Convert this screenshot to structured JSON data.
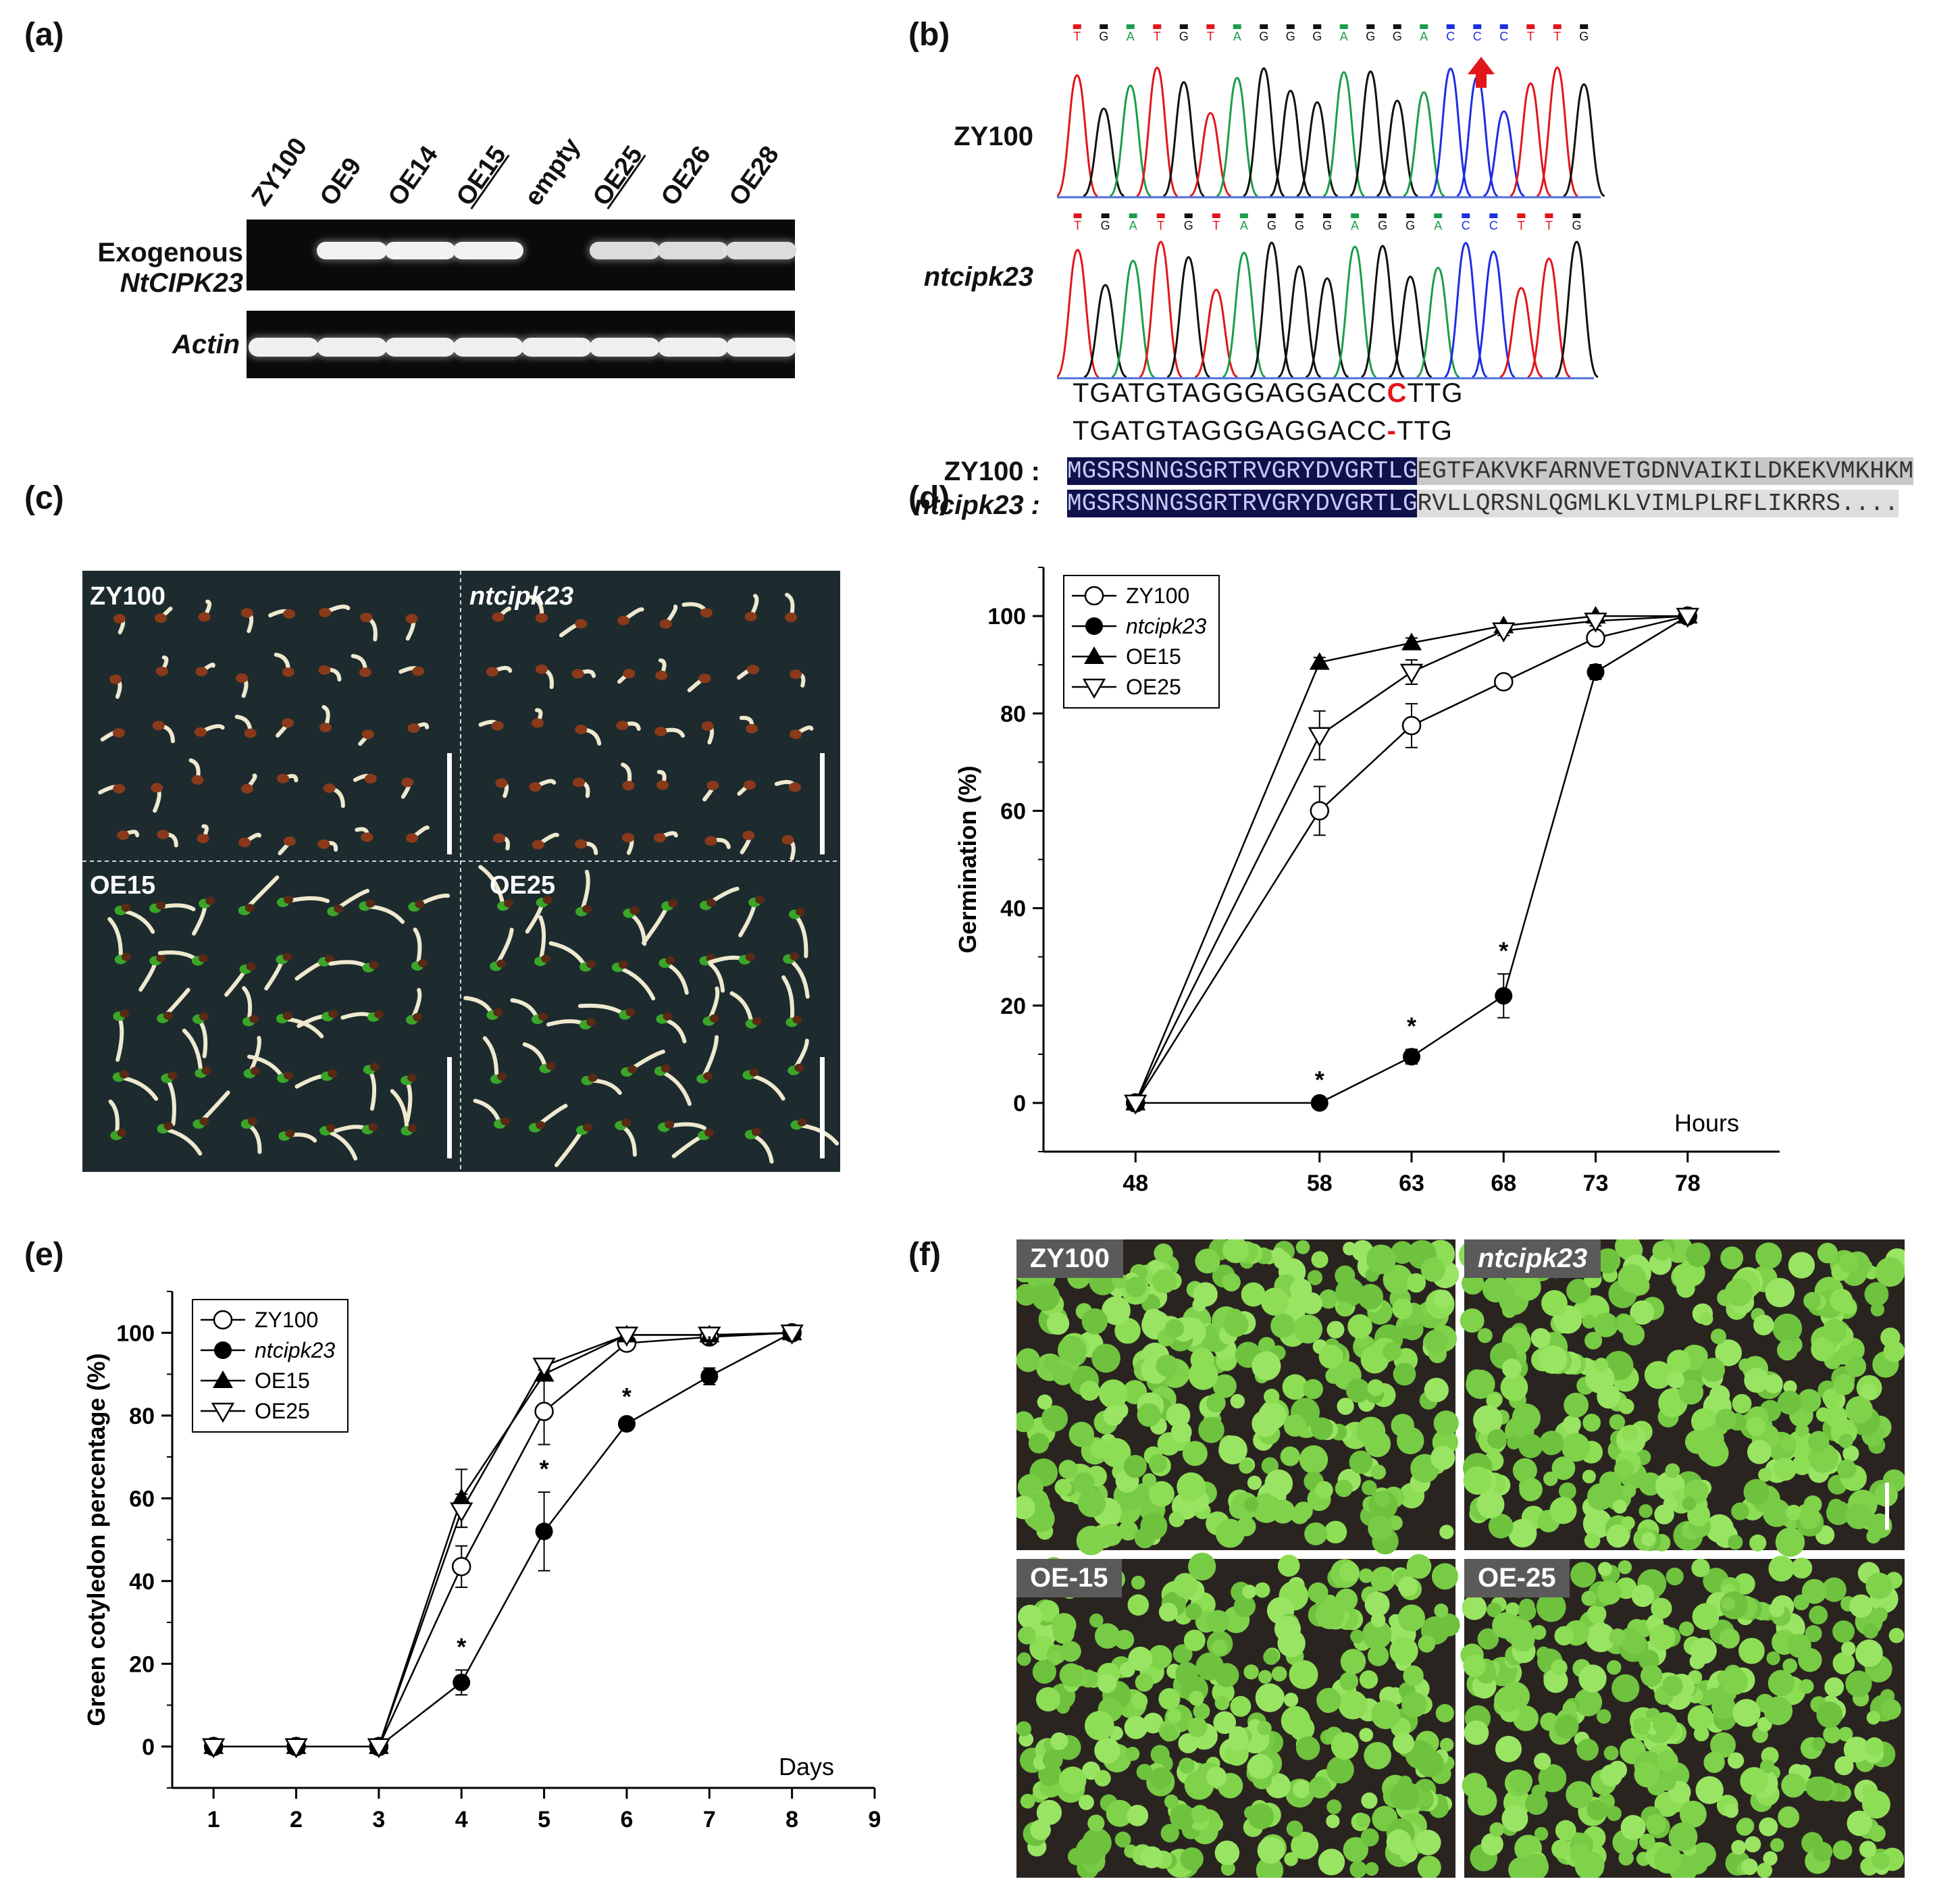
{
  "panels": {
    "a": {
      "label": "(a)",
      "lanes": [
        "ZY100",
        "OE9",
        "OE14",
        "OE15",
        "empty",
        "OE25",
        "OE26",
        "OE28"
      ],
      "underlined_lanes": [
        "OE15",
        "OE25"
      ],
      "row1_label_line1": "Exogenous",
      "row1_label_line2": "NtCIPK23",
      "row2_label": "Actin"
    },
    "b": {
      "label": "(b)",
      "trace1_label": "ZY100",
      "trace2_label": "ntcipk23",
      "top_bases": "TGATGTAGGGAGGACCCTTG",
      "mid_bases": "TGATGTAGGGAGGACCTTG",
      "seq1_prefix": "TGATGTAGGGAGGACC",
      "seq1_mark": "C",
      "seq1_suffix": "TTG",
      "seq2_prefix": "TGATGTAGGGAGGACC",
      "seq2_mark": "-",
      "seq2_suffix": "TTG",
      "align1_label": "ZY100 :",
      "align2_label": "ntcipk23 :",
      "align1_conserved": "MGSRSNNGSGRTRVGRYDVGRTLG",
      "align1_rest": "EGTFAKVKFARNVETGDNVAIKILDKEKVMKHKM",
      "align2_conserved": "MGSRSNNGSGRTRVGRYDVGRTLG",
      "align2_rest": "RVLLQRSNLQGMLKLVIMLPLRFLIKRRS...."
    },
    "c": {
      "label": "(c)",
      "q1": "ZY100",
      "q2": "ntcipk23",
      "q3": "OE15",
      "q4": "OE25"
    },
    "d": {
      "label": "(d)"
    },
    "e": {
      "label": "(e)"
    },
    "f": {
      "label": "(f)",
      "q1": "ZY100",
      "q2": "ntcipk23",
      "q3": "OE-15",
      "q4": "OE-25"
    }
  },
  "chart_data": [
    {
      "panel": "d",
      "type": "line",
      "title": "",
      "xlabel": "Hours",
      "ylabel": "Germination (%)",
      "x": [
        48,
        58,
        63,
        68,
        73,
        78
      ],
      "xlim": [
        43,
        83
      ],
      "ylim": [
        -10,
        110
      ],
      "yticks": [
        0,
        20,
        40,
        60,
        80,
        100
      ],
      "legend_position": "top-left",
      "series": [
        {
          "name": "ZY100",
          "marker": "open-circle",
          "values": [
            0,
            60,
            77.5,
            86.5,
            95.5,
            100
          ],
          "err": [
            0,
            5,
            4.5,
            1,
            1,
            0
          ]
        },
        {
          "name": "ntcipk23",
          "marker": "filled-circle",
          "values": [
            0,
            0,
            9.5,
            22,
            88.5,
            100
          ],
          "err": [
            0,
            0,
            1.5,
            4.5,
            1.5,
            0
          ]
        },
        {
          "name": "OE15",
          "marker": "filled-triangle",
          "values": [
            0,
            90.5,
            94.5,
            98,
            100,
            100
          ],
          "err": [
            0,
            1,
            1,
            0.5,
            0.5,
            0
          ]
        },
        {
          "name": "OE25",
          "marker": "open-triangle-down",
          "values": [
            0,
            75.5,
            88.5,
            97,
            99,
            100
          ],
          "err": [
            0,
            5,
            2.5,
            1,
            1,
            0
          ]
        }
      ],
      "significance": [
        {
          "x": 58,
          "y": 0
        },
        {
          "x": 63,
          "y": 9.5
        },
        {
          "x": 68,
          "y": 22
        }
      ],
      "significance_mark": "*"
    },
    {
      "panel": "e",
      "type": "line",
      "title": "",
      "xlabel": "Days",
      "ylabel": "Green cotyledon percentage (%)",
      "x": [
        1,
        2,
        3,
        4,
        5,
        6,
        7,
        8
      ],
      "xticks": [
        1,
        2,
        3,
        4,
        5,
        6,
        7,
        8,
        9
      ],
      "xlim": [
        0.5,
        9
      ],
      "ylim": [
        -10,
        110
      ],
      "yticks": [
        0,
        20,
        40,
        60,
        80,
        100
      ],
      "legend_position": "top-left",
      "series": [
        {
          "name": "ZY100",
          "marker": "open-circle",
          "values": [
            0,
            0,
            0,
            43.5,
            81,
            97.5,
            99,
            100
          ],
          "err": [
            0,
            0,
            0,
            5,
            8,
            1.5,
            1,
            0
          ]
        },
        {
          "name": "ntcipk23",
          "marker": "filled-circle",
          "values": [
            0,
            0,
            0,
            15.5,
            52,
            78,
            89.5,
            100
          ],
          "err": [
            0,
            0,
            0,
            3,
            9.5,
            1,
            2,
            0
          ]
        },
        {
          "name": "OE15",
          "marker": "filled-triangle",
          "values": [
            0,
            0,
            0,
            60,
            90,
            99.5,
            99.5,
            100
          ],
          "err": [
            0,
            0,
            0,
            7,
            1.5,
            0.5,
            0.5,
            0
          ]
        },
        {
          "name": "OE25",
          "marker": "open-triangle-down",
          "values": [
            0,
            0,
            0,
            57,
            92,
            99.5,
            99.5,
            100
          ],
          "err": [
            0,
            0,
            0,
            4,
            1,
            0.5,
            0.5,
            0
          ]
        }
      ],
      "significance": [
        {
          "x": 4,
          "y": 15.5
        },
        {
          "x": 5,
          "y": 52
        },
        {
          "x": 6,
          "y": 78
        },
        {
          "x": 7,
          "y": 89.5
        }
      ],
      "significance_mark": "*"
    }
  ]
}
